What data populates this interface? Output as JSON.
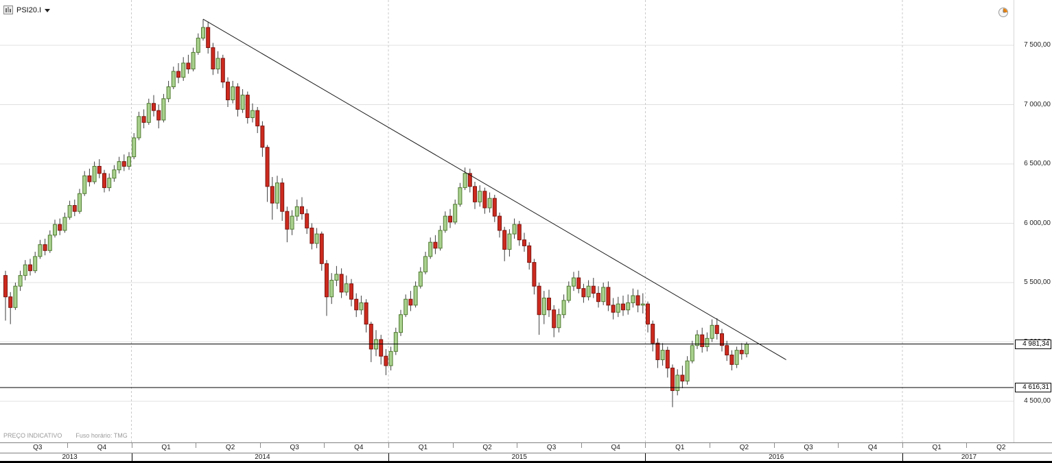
{
  "header": {
    "instrument_label": "PSI20.I"
  },
  "icons": {
    "instrument": "chart-icon",
    "dropdown": "chevron-down-icon",
    "top_right": "clock-icon"
  },
  "footer": {
    "price_note": "PREÇO INDICATIVO",
    "timezone_note": "Fuso horário: TMG"
  },
  "colors": {
    "up_fill": "#a9d18e",
    "up_border": "#4f7a30",
    "down_fill": "#cd2a1e",
    "down_border": "#7c1410",
    "trendline": "#1a1a1a",
    "price_line": "#000000",
    "grid": "#e0e0e0"
  },
  "chart_data": {
    "type": "candlestick",
    "title": "PSI20.I weekly candlestick chart",
    "timeframe": "weekly",
    "grid": true,
    "y_axis": {
      "side": "right",
      "range": [
        4350,
        7880
      ],
      "ticks": [
        7500,
        7000,
        6500,
        6000,
        5500,
        5000,
        4500
      ],
      "labels": [
        "7 500,00",
        "7 000,00",
        "6 500,00",
        "6 000,00",
        "5 500,00",
        "5 000,00",
        "4 500,00"
      ]
    },
    "x_axis": {
      "quarter_labels": [
        "Q3",
        "Q4",
        "Q1",
        "Q2",
        "Q3",
        "Q4",
        "Q1",
        "Q2",
        "Q3",
        "Q4",
        "Q1",
        "Q2",
        "Q3",
        "Q4",
        "Q1",
        "Q2"
      ],
      "year_labels": [
        "2013",
        "2014",
        "2015",
        "2016",
        "2017"
      ],
      "year_spans_quarters": [
        2,
        4,
        4,
        4,
        2
      ]
    },
    "price_lines": [
      {
        "price": 4981.34,
        "label": "4 981,34"
      },
      {
        "price": 4616.31,
        "label": "4 616,31"
      }
    ],
    "trendline": {
      "from_week": 40,
      "from_price": 7720,
      "to_week": 158,
      "to_price": 4850
    },
    "candles_ohlc": [
      [
        5560,
        5600,
        5180,
        5380
      ],
      [
        5380,
        5420,
        5150,
        5290
      ],
      [
        5290,
        5500,
        5270,
        5470
      ],
      [
        5470,
        5600,
        5430,
        5560
      ],
      [
        5560,
        5690,
        5520,
        5650
      ],
      [
        5650,
        5700,
        5560,
        5600
      ],
      [
        5600,
        5760,
        5580,
        5720
      ],
      [
        5720,
        5860,
        5700,
        5820
      ],
      [
        5820,
        5870,
        5730,
        5770
      ],
      [
        5770,
        5940,
        5750,
        5900
      ],
      [
        5900,
        6030,
        5880,
        5990
      ],
      [
        5990,
        6040,
        5900,
        5940
      ],
      [
        5940,
        6090,
        5920,
        6050
      ],
      [
        6050,
        6190,
        6030,
        6150
      ],
      [
        6150,
        6200,
        6060,
        6100
      ],
      [
        6100,
        6290,
        6080,
        6250
      ],
      [
        6250,
        6440,
        6230,
        6400
      ],
      [
        6400,
        6460,
        6310,
        6350
      ],
      [
        6350,
        6520,
        6330,
        6480
      ],
      [
        6480,
        6540,
        6380,
        6420
      ],
      [
        6420,
        6450,
        6260,
        6300
      ],
      [
        6300,
        6420,
        6270,
        6380
      ],
      [
        6380,
        6490,
        6350,
        6450
      ],
      [
        6450,
        6560,
        6420,
        6520
      ],
      [
        6520,
        6580,
        6440,
        6480
      ],
      [
        6480,
        6600,
        6450,
        6560
      ],
      [
        6560,
        6760,
        6540,
        6720
      ],
      [
        6720,
        6940,
        6700,
        6900
      ],
      [
        6900,
        6960,
        6800,
        6850
      ],
      [
        6850,
        7050,
        6830,
        7010
      ],
      [
        7010,
        7080,
        6900,
        6950
      ],
      [
        6950,
        7000,
        6800,
        6870
      ],
      [
        6870,
        7090,
        6850,
        7050
      ],
      [
        7050,
        7200,
        7020,
        7150
      ],
      [
        7150,
        7320,
        7130,
        7280
      ],
      [
        7280,
        7350,
        7180,
        7230
      ],
      [
        7230,
        7400,
        7200,
        7350
      ],
      [
        7350,
        7420,
        7260,
        7300
      ],
      [
        7300,
        7480,
        7280,
        7440
      ],
      [
        7440,
        7600,
        7420,
        7560
      ],
      [
        7560,
        7720,
        7540,
        7650
      ],
      [
        7650,
        7700,
        7430,
        7480
      ],
      [
        7480,
        7520,
        7250,
        7300
      ],
      [
        7300,
        7450,
        7260,
        7390
      ],
      [
        7390,
        7420,
        7140,
        7190
      ],
      [
        7190,
        7230,
        6980,
        7040
      ],
      [
        7040,
        7200,
        7010,
        7150
      ],
      [
        7150,
        7180,
        6900,
        6960
      ],
      [
        6960,
        7130,
        6930,
        7080
      ],
      [
        7080,
        7110,
        6840,
        6890
      ],
      [
        6890,
        7010,
        6850,
        6950
      ],
      [
        6950,
        6980,
        6760,
        6820
      ],
      [
        6820,
        6860,
        6560,
        6640
      ],
      [
        6640,
        6660,
        6180,
        6310
      ],
      [
        6310,
        6390,
        6030,
        6170
      ],
      [
        6170,
        6400,
        6120,
        6340
      ],
      [
        6340,
        6380,
        6020,
        6100
      ],
      [
        6100,
        6140,
        5840,
        5950
      ],
      [
        5950,
        6110,
        5900,
        6060
      ],
      [
        6060,
        6200,
        6020,
        6140
      ],
      [
        6140,
        6220,
        6030,
        6080
      ],
      [
        6080,
        6120,
        5910,
        5960
      ],
      [
        5960,
        6000,
        5780,
        5830
      ],
      [
        5830,
        5960,
        5790,
        5910
      ],
      [
        5910,
        5930,
        5600,
        5660
      ],
      [
        5660,
        5690,
        5220,
        5380
      ],
      [
        5380,
        5580,
        5320,
        5520
      ],
      [
        5520,
        5640,
        5470,
        5570
      ],
      [
        5570,
        5620,
        5370,
        5420
      ],
      [
        5420,
        5560,
        5390,
        5490
      ],
      [
        5490,
        5530,
        5300,
        5360
      ],
      [
        5360,
        5410,
        5210,
        5270
      ],
      [
        5270,
        5390,
        5230,
        5330
      ],
      [
        5330,
        5360,
        5080,
        5150
      ],
      [
        5150,
        5170,
        4830,
        4940
      ],
      [
        4940,
        5100,
        4880,
        5020
      ],
      [
        5020,
        5060,
        4810,
        4880
      ],
      [
        4880,
        4940,
        4720,
        4800
      ],
      [
        4800,
        4960,
        4760,
        4920
      ],
      [
        4920,
        5120,
        4890,
        5080
      ],
      [
        5080,
        5270,
        5050,
        5230
      ],
      [
        5230,
        5400,
        5210,
        5360
      ],
      [
        5360,
        5430,
        5260,
        5310
      ],
      [
        5310,
        5510,
        5290,
        5470
      ],
      [
        5470,
        5630,
        5450,
        5590
      ],
      [
        5590,
        5760,
        5570,
        5720
      ],
      [
        5720,
        5880,
        5700,
        5840
      ],
      [
        5840,
        5900,
        5740,
        5790
      ],
      [
        5790,
        5980,
        5770,
        5940
      ],
      [
        5940,
        6100,
        5920,
        6060
      ],
      [
        6060,
        6120,
        5960,
        6010
      ],
      [
        6010,
        6200,
        5990,
        6160
      ],
      [
        6160,
        6340,
        6140,
        6300
      ],
      [
        6300,
        6470,
        6280,
        6420
      ],
      [
        6420,
        6460,
        6260,
        6310
      ],
      [
        6310,
        6350,
        6120,
        6180
      ],
      [
        6180,
        6320,
        6140,
        6270
      ],
      [
        6270,
        6300,
        6080,
        6130
      ],
      [
        6130,
        6260,
        6090,
        6210
      ],
      [
        6210,
        6240,
        6010,
        6060
      ],
      [
        6060,
        6090,
        5880,
        5940
      ],
      [
        5940,
        5970,
        5680,
        5780
      ],
      [
        5780,
        5950,
        5720,
        5910
      ],
      [
        5910,
        6040,
        5870,
        5990
      ],
      [
        5990,
        6020,
        5810,
        5860
      ],
      [
        5860,
        5920,
        5760,
        5810
      ],
      [
        5810,
        5840,
        5610,
        5670
      ],
      [
        5670,
        5700,
        5400,
        5470
      ],
      [
        5470,
        5500,
        5060,
        5230
      ],
      [
        5230,
        5430,
        5150,
        5370
      ],
      [
        5370,
        5440,
        5210,
        5270
      ],
      [
        5270,
        5310,
        5040,
        5120
      ],
      [
        5120,
        5280,
        5080,
        5230
      ],
      [
        5230,
        5400,
        5200,
        5350
      ],
      [
        5350,
        5510,
        5330,
        5470
      ],
      [
        5470,
        5590,
        5430,
        5540
      ],
      [
        5540,
        5600,
        5410,
        5450
      ],
      [
        5450,
        5490,
        5330,
        5380
      ],
      [
        5380,
        5520,
        5350,
        5470
      ],
      [
        5470,
        5540,
        5370,
        5410
      ],
      [
        5410,
        5470,
        5290,
        5340
      ],
      [
        5340,
        5500,
        5310,
        5460
      ],
      [
        5460,
        5510,
        5260,
        5310
      ],
      [
        5310,
        5370,
        5190,
        5250
      ],
      [
        5250,
        5380,
        5210,
        5320
      ],
      [
        5320,
        5390,
        5220,
        5270
      ],
      [
        5270,
        5400,
        5230,
        5330
      ],
      [
        5330,
        5450,
        5290,
        5390
      ],
      [
        5390,
        5440,
        5250,
        5310
      ],
      [
        5310,
        5410,
        5240,
        5320
      ],
      [
        5320,
        5340,
        5080,
        5150
      ],
      [
        5150,
        5180,
        4920,
        4990
      ],
      [
        4990,
        5030,
        4780,
        4850
      ],
      [
        4850,
        4990,
        4800,
        4930
      ],
      [
        4930,
        4960,
        4700,
        4780
      ],
      [
        4780,
        4810,
        4450,
        4590
      ],
      [
        4590,
        4770,
        4550,
        4720
      ],
      [
        4720,
        4800,
        4610,
        4670
      ],
      [
        4670,
        4880,
        4640,
        4840
      ],
      [
        4840,
        5010,
        4820,
        4970
      ],
      [
        4970,
        5100,
        4940,
        5060
      ],
      [
        5060,
        5120,
        4910,
        4960
      ],
      [
        4960,
        5080,
        4920,
        5030
      ],
      [
        5030,
        5190,
        5000,
        5140
      ],
      [
        5140,
        5200,
        5020,
        5070
      ],
      [
        5070,
        5110,
        4920,
        4970
      ],
      [
        4970,
        5010,
        4840,
        4890
      ],
      [
        4890,
        4930,
        4760,
        4810
      ],
      [
        4810,
        4960,
        4780,
        4930
      ],
      [
        4930,
        4990,
        4850,
        4900
      ],
      [
        4900,
        5000,
        4870,
        4981
      ]
    ]
  }
}
